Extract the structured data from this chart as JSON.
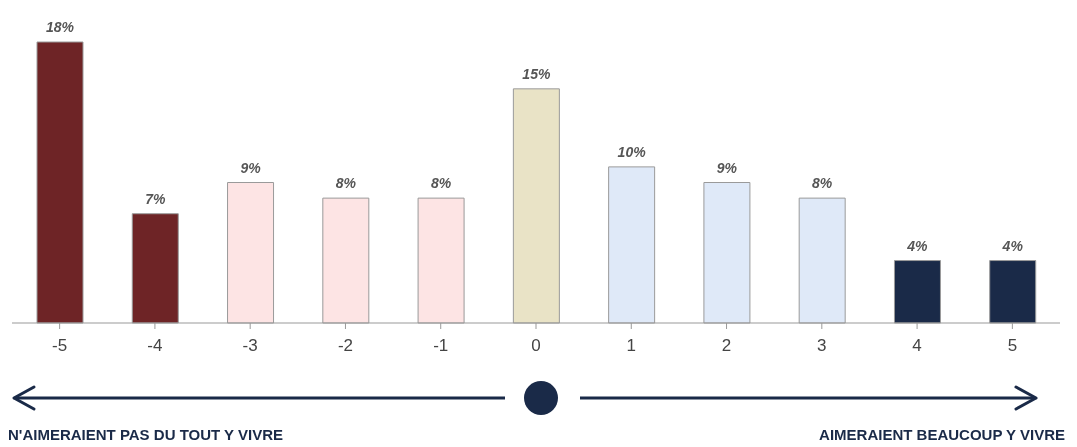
{
  "chart_data": {
    "type": "bar",
    "categories": [
      "-5",
      "-4",
      "-3",
      "-2",
      "-1",
      "0",
      "1",
      "2",
      "3",
      "4",
      "5"
    ],
    "values": [
      18,
      7,
      9,
      8,
      8,
      15,
      10,
      9,
      8,
      4,
      4
    ],
    "colors": [
      "#6e2426",
      "#6e2426",
      "#fde4e4",
      "#fde4e4",
      "#fde4e4",
      "#e9e3c6",
      "#dfe9f8",
      "#dfe9f8",
      "#dfe9f8",
      "#1a2a48",
      "#1a2a48"
    ],
    "value_labels": [
      "18%",
      "7%",
      "9%",
      "8%",
      "8%",
      "15%",
      "10%",
      "9%",
      "8%",
      "4%",
      "4%"
    ],
    "annotations": [
      "N'AIMERAIENT PAS DU TOUT Y VIVRE",
      "AIMERAIENT BEAUCOUP Y VIVRE"
    ]
  }
}
